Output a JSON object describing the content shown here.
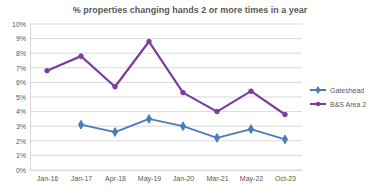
{
  "chart_data": {
    "type": "line",
    "title": "% properties changing hands 2 or more times in a year",
    "categories": [
      "Jan-16",
      "Jan-17",
      "Apr-18",
      "May-19",
      "Jan-20",
      "Mar-21",
      "May-22",
      "Oct-23"
    ],
    "series": [
      {
        "name": "Gateshead",
        "color": "#4a7ebb",
        "marker": "diamond",
        "values": [
          null,
          3.1,
          2.6,
          3.5,
          3.0,
          2.2,
          2.8,
          2.1
        ]
      },
      {
        "name": "B&S Area 2",
        "color": "#7b3f9b",
        "marker": "circle",
        "values": [
          6.8,
          7.8,
          5.7,
          8.8,
          5.3,
          4.0,
          5.4,
          3.8
        ]
      }
    ],
    "ylim": [
      0,
      10
    ],
    "yticks": [
      {
        "value": 0,
        "label": "0%"
      },
      {
        "value": 1,
        "label": "1%"
      },
      {
        "value": 2,
        "label": "2%"
      },
      {
        "value": 3,
        "label": "3%"
      },
      {
        "value": 4,
        "label": "4%"
      },
      {
        "value": 5,
        "label": "5%"
      },
      {
        "value": 6,
        "label": "6%"
      },
      {
        "value": 7,
        "label": "7%"
      },
      {
        "value": 8,
        "label": "8%"
      },
      {
        "value": 9,
        "label": "9%"
      },
      {
        "value": 10,
        "label": "10%"
      }
    ],
    "grid": true,
    "legend": "right"
  }
}
